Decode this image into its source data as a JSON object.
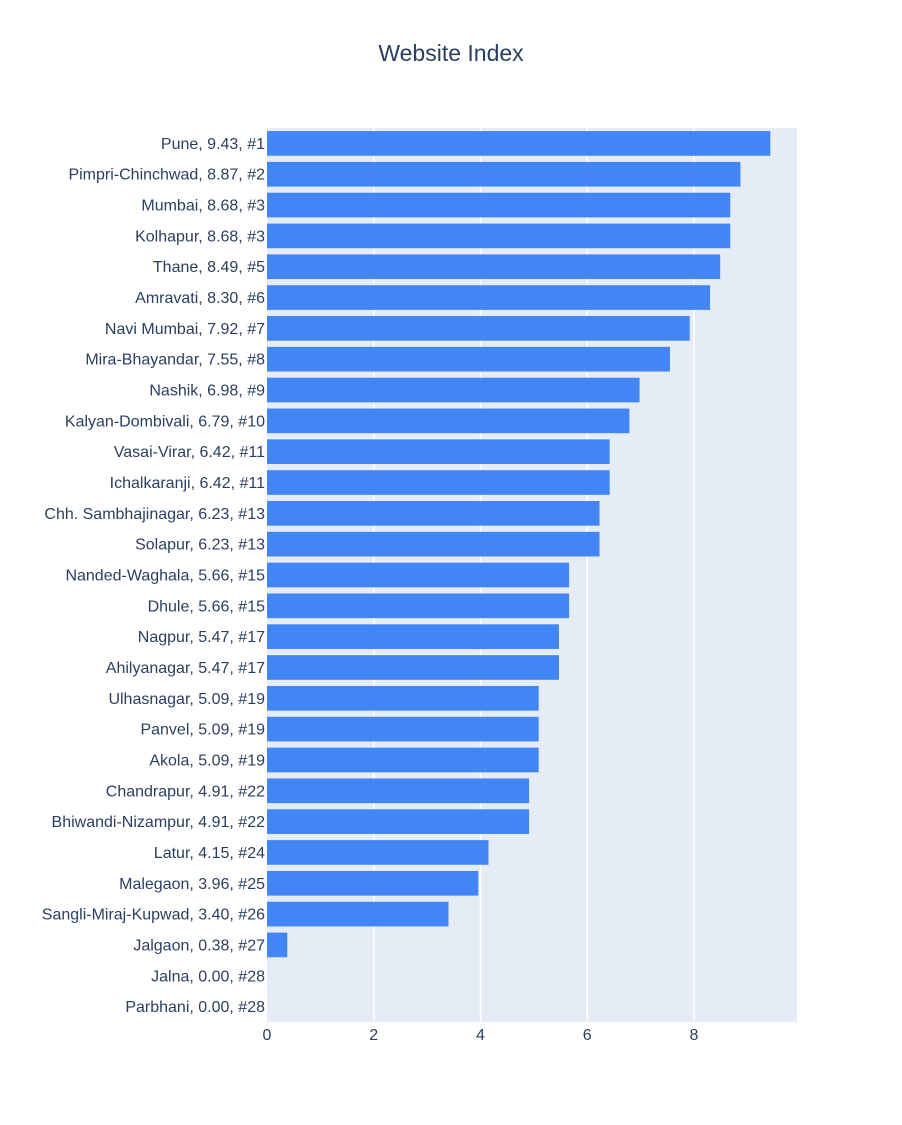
{
  "chart_data": {
    "type": "bar",
    "orientation": "horizontal",
    "title": "Website Index",
    "xlabel": "",
    "ylabel": "",
    "xlim": [
      0,
      9.93
    ],
    "x_ticks": [
      "0",
      "2",
      "4",
      "6",
      "8"
    ],
    "grid": true,
    "bar_color": "#4285f4",
    "plot_background": "#e5ecf6",
    "categories": [
      "Pune, 9.43, #1",
      "Pimpri-Chinchwad, 8.87, #2",
      "Mumbai, 8.68, #3",
      "Kolhapur, 8.68, #3",
      "Thane, 8.49, #5",
      "Amravati, 8.30, #6",
      "Navi Mumbai, 7.92, #7",
      "Mira-Bhayandar, 7.55, #8",
      "Nashik, 6.98, #9",
      "Kalyan-Dombivali, 6.79, #10",
      "Vasai-Virar, 6.42, #11",
      "Ichalkaranji, 6.42, #11",
      "Chh. Sambhajinagar, 6.23, #13",
      "Solapur, 6.23, #13",
      "Nanded-Waghala, 5.66, #15",
      "Dhule, 5.66, #15",
      "Nagpur, 5.47, #17",
      "Ahilyanagar, 5.47, #17",
      "Ulhasnagar, 5.09, #19",
      "Panvel, 5.09, #19",
      "Akola, 5.09, #19",
      "Chandrapur, 4.91, #22",
      "Bhiwandi-Nizampur, 4.91, #22",
      "Latur, 4.15, #24",
      "Malegaon, 3.96, #25",
      "Sangli-Miraj-Kupwad, 3.40, #26",
      "Jalgaon, 0.38, #27",
      "Jalna, 0.00, #28",
      "Parbhani, 0.00, #28"
    ],
    "values": [
      9.43,
      8.87,
      8.68,
      8.68,
      8.49,
      8.3,
      7.92,
      7.55,
      6.98,
      6.79,
      6.42,
      6.42,
      6.23,
      6.23,
      5.66,
      5.66,
      5.47,
      5.47,
      5.09,
      5.09,
      5.09,
      4.91,
      4.91,
      4.15,
      3.96,
      3.4,
      0.38,
      0.0,
      0.0
    ]
  }
}
